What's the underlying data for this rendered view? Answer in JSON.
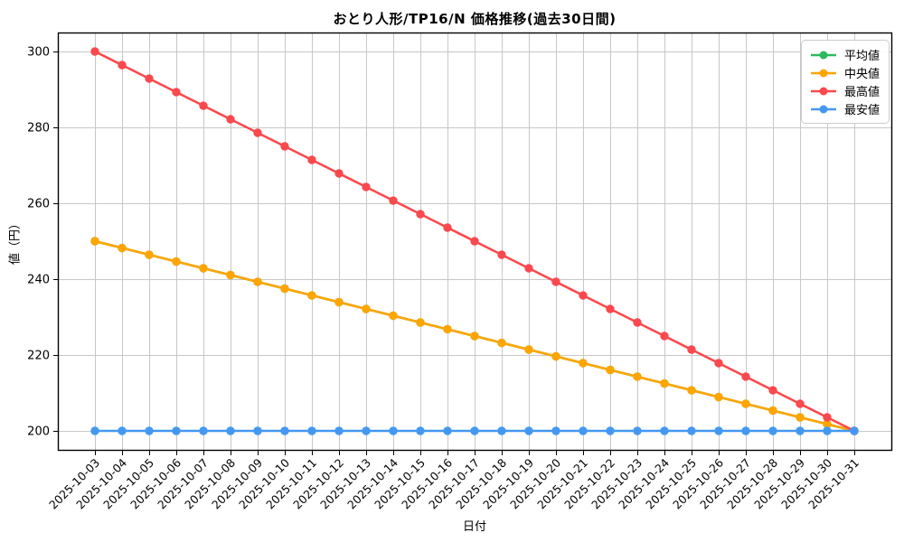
{
  "chart_data": {
    "type": "line",
    "title": "おとり人形/TP16/N 価格推移(過去30日間)",
    "xlabel": "日付",
    "ylabel": "値（円）",
    "grid": true,
    "legend_position": "upper right",
    "ylim": [
      195,
      305
    ],
    "yticks": [
      200,
      220,
      240,
      260,
      280,
      300
    ],
    "x": [
      "2025-10-03",
      "2025-10-04",
      "2025-10-05",
      "2025-10-06",
      "2025-10-07",
      "2025-10-08",
      "2025-10-09",
      "2025-10-10",
      "2025-10-11",
      "2025-10-12",
      "2025-10-13",
      "2025-10-14",
      "2025-10-15",
      "2025-10-16",
      "2025-10-17",
      "2025-10-18",
      "2025-10-19",
      "2025-10-20",
      "2025-10-21",
      "2025-10-22",
      "2025-10-23",
      "2025-10-24",
      "2025-10-25",
      "2025-10-26",
      "2025-10-27",
      "2025-10-28",
      "2025-10-29",
      "2025-10-30",
      "2025-10-31"
    ],
    "series": [
      {
        "id": "mean",
        "name": "平均値",
        "color": "#2eb860",
        "values": [
          250,
          248.21,
          246.43,
          244.64,
          242.86,
          241.07,
          239.29,
          237.5,
          235.71,
          233.93,
          232.14,
          230.36,
          228.57,
          226.79,
          225,
          223.21,
          221.43,
          219.64,
          217.86,
          216.07,
          214.29,
          212.5,
          210.71,
          208.93,
          207.14,
          205.36,
          203.57,
          201.79,
          200
        ]
      },
      {
        "id": "median",
        "name": "中央値",
        "color": "#ffa502",
        "values": [
          250,
          248.21,
          246.43,
          244.64,
          242.86,
          241.07,
          239.29,
          237.5,
          235.71,
          233.93,
          232.14,
          230.36,
          228.57,
          226.79,
          225,
          223.21,
          221.43,
          219.64,
          217.86,
          216.07,
          214.29,
          212.5,
          210.71,
          208.93,
          207.14,
          205.36,
          203.57,
          201.79,
          200
        ]
      },
      {
        "id": "max",
        "name": "最高値",
        "color": "#f9494e",
        "values": [
          300,
          296.43,
          292.86,
          289.29,
          285.71,
          282.14,
          278.57,
          275,
          271.43,
          267.86,
          264.29,
          260.71,
          257.14,
          253.57,
          250,
          246.43,
          242.86,
          239.29,
          235.71,
          232.14,
          228.57,
          225,
          221.43,
          217.86,
          214.29,
          210.71,
          207.14,
          203.57,
          200
        ]
      },
      {
        "id": "min",
        "name": "最安値",
        "color": "#4498f2",
        "values": [
          200,
          200,
          200,
          200,
          200,
          200,
          200,
          200,
          200,
          200,
          200,
          200,
          200,
          200,
          200,
          200,
          200,
          200,
          200,
          200,
          200,
          200,
          200,
          200,
          200,
          200,
          200,
          200,
          200
        ]
      }
    ],
    "style": {
      "grid_color": "#c8c8c8",
      "spine_color": "#000000",
      "tick_label_color": "#000000",
      "legend_border_color": "#cccccc"
    }
  }
}
